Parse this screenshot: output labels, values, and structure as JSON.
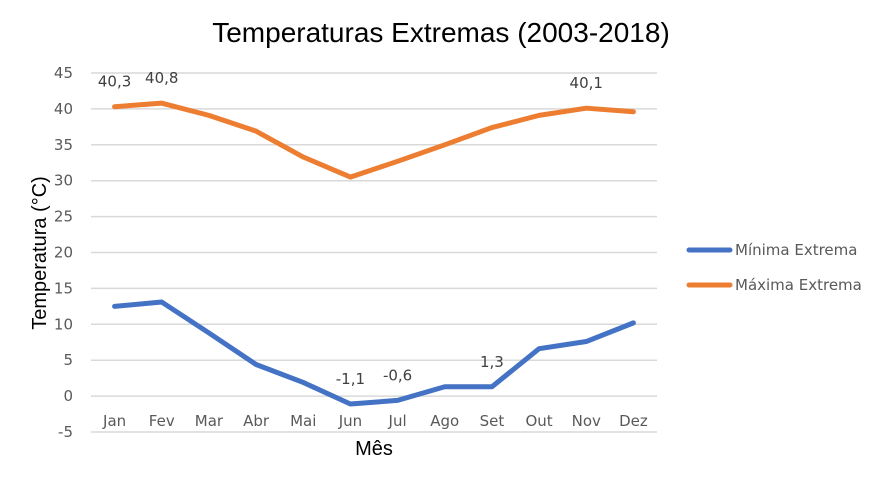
{
  "chart_data": {
    "type": "line",
    "title": "Temperaturas Extremas  (2003-2018)",
    "xlabel": "Mês",
    "ylabel": "Temperatura (°C)",
    "ylim": [
      -5,
      45
    ],
    "ytick_step": 5,
    "yticks": [
      "45",
      "40",
      "35",
      "30",
      "25",
      "20",
      "15",
      "10",
      "5",
      "0",
      "-5"
    ],
    "grid": true,
    "legend_position": "right",
    "categories": [
      "Jan",
      "Fev",
      "Mar",
      "Abr",
      "Mai",
      "Jun",
      "Jul",
      "Ago",
      "Set",
      "Out",
      "Nov",
      "Dez"
    ],
    "series": [
      {
        "name": "Mínima Extrema",
        "color": "#4472c4",
        "values": [
          12.5,
          13.1,
          8.8,
          4.4,
          1.9,
          -1.1,
          -0.6,
          1.3,
          1.3,
          6.6,
          7.6,
          10.2
        ],
        "data_labels": [
          {
            "index": 5,
            "text": "-1,1"
          },
          {
            "index": 6,
            "text": "-0,6"
          },
          {
            "index": 8,
            "text": "1,3"
          }
        ]
      },
      {
        "name": "Máxima Extrema",
        "color": "#ed7d31",
        "values": [
          40.3,
          40.8,
          39.1,
          36.9,
          33.3,
          30.5,
          32.7,
          35.0,
          37.4,
          39.1,
          40.1,
          39.6
        ],
        "data_labels": [
          {
            "index": 0,
            "text": "40,3"
          },
          {
            "index": 1,
            "text": "40,8"
          },
          {
            "index": 10,
            "text": "40,1"
          }
        ]
      }
    ]
  }
}
